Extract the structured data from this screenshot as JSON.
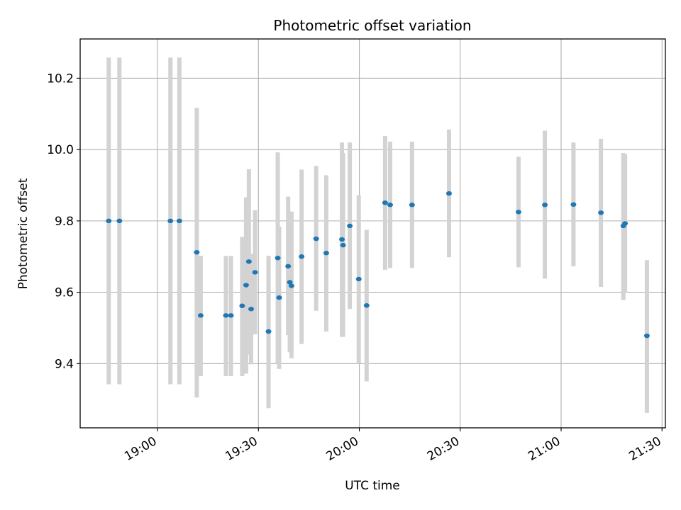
{
  "chart_data": {
    "type": "scatter",
    "title": "Photometric offset variation",
    "xlabel": "UTC time",
    "ylabel": "Photometric offset",
    "x_ticks": [
      "19:00",
      "19:30",
      "20:00",
      "20:30",
      "21:00",
      "21:30"
    ],
    "y_ticks": [
      "9.4",
      "9.6",
      "9.8",
      "10.0",
      "10.2"
    ],
    "xlim": [
      "18:37",
      "21:31"
    ],
    "ylim": [
      9.22,
      10.31
    ],
    "grid": true,
    "colors": {
      "point": "#1f77b4",
      "errorbar": "#d3d3d3"
    },
    "points": [
      {
        "x": "18:45:30",
        "y": 9.8,
        "ylo": 9.342,
        "yhi": 10.258
      },
      {
        "x": "18:48:40",
        "y": 9.8,
        "ylo": 9.342,
        "yhi": 10.258
      },
      {
        "x": "19:03:50",
        "y": 9.8,
        "ylo": 9.342,
        "yhi": 10.258
      },
      {
        "x": "19:06:30",
        "y": 9.8,
        "ylo": 9.342,
        "yhi": 10.258
      },
      {
        "x": "19:11:40",
        "y": 9.712,
        "ylo": 9.305,
        "yhi": 10.117
      },
      {
        "x": "19:12:50",
        "y": 9.535,
        "ylo": 9.365,
        "yhi": 9.702
      },
      {
        "x": "19:20:20",
        "y": 9.535,
        "ylo": 9.365,
        "yhi": 9.702
      },
      {
        "x": "19:21:50",
        "y": 9.535,
        "ylo": 9.365,
        "yhi": 9.702
      },
      {
        "x": "19:25:10",
        "y": 9.562,
        "ylo": 9.365,
        "yhi": 9.755
      },
      {
        "x": "19:26:20",
        "y": 9.62,
        "ylo": 9.372,
        "yhi": 9.866
      },
      {
        "x": "19:27:10",
        "y": 9.686,
        "ylo": 9.425,
        "yhi": 9.945
      },
      {
        "x": "19:27:50",
        "y": 9.553,
        "ylo": 9.398,
        "yhi": 9.708
      },
      {
        "x": "19:29:00",
        "y": 9.656,
        "ylo": 9.482,
        "yhi": 9.83
      },
      {
        "x": "19:33:00",
        "y": 9.49,
        "ylo": 9.275,
        "yhi": 9.702
      },
      {
        "x": "19:35:45",
        "y": 9.696,
        "ylo": 9.4,
        "yhi": 9.992
      },
      {
        "x": "19:36:10",
        "y": 9.585,
        "ylo": 9.385,
        "yhi": 9.784
      },
      {
        "x": "19:38:50",
        "y": 9.673,
        "ylo": 9.48,
        "yhi": 9.868
      },
      {
        "x": "19:39:20",
        "y": 9.628,
        "ylo": 9.432,
        "yhi": 9.826
      },
      {
        "x": "19:39:50",
        "y": 9.618,
        "ylo": 9.415,
        "yhi": 9.826
      },
      {
        "x": "19:42:50",
        "y": 9.7,
        "ylo": 9.455,
        "yhi": 9.944
      },
      {
        "x": "19:47:10",
        "y": 9.75,
        "ylo": 9.548,
        "yhi": 9.954
      },
      {
        "x": "19:50:10",
        "y": 9.71,
        "ylo": 9.49,
        "yhi": 9.928
      },
      {
        "x": "19:54:50",
        "y": 9.748,
        "ylo": 9.475,
        "yhi": 10.02
      },
      {
        "x": "19:55:10",
        "y": 9.732,
        "ylo": 9.475,
        "yhi": 9.99
      },
      {
        "x": "19:57:10",
        "y": 9.786,
        "ylo": 9.553,
        "yhi": 10.02
      },
      {
        "x": "19:59:50",
        "y": 9.637,
        "ylo": 9.4,
        "yhi": 9.872
      },
      {
        "x": "20:02:10",
        "y": 9.563,
        "ylo": 9.35,
        "yhi": 9.775
      },
      {
        "x": "20:07:40",
        "y": 9.851,
        "ylo": 9.663,
        "yhi": 10.038
      },
      {
        "x": "20:09:10",
        "y": 9.845,
        "ylo": 9.668,
        "yhi": 10.022
      },
      {
        "x": "20:15:40",
        "y": 9.845,
        "ylo": 9.668,
        "yhi": 10.022
      },
      {
        "x": "20:26:40",
        "y": 9.877,
        "ylo": 9.698,
        "yhi": 10.056
      },
      {
        "x": "20:47:20",
        "y": 9.825,
        "ylo": 9.67,
        "yhi": 9.98
      },
      {
        "x": "20:55:10",
        "y": 9.845,
        "ylo": 9.638,
        "yhi": 10.053
      },
      {
        "x": "21:03:40",
        "y": 9.846,
        "ylo": 9.673,
        "yhi": 10.02
      },
      {
        "x": "21:11:50",
        "y": 9.823,
        "ylo": 9.615,
        "yhi": 10.03
      },
      {
        "x": "21:18:30",
        "y": 9.786,
        "ylo": 9.578,
        "yhi": 9.99
      },
      {
        "x": "21:19:00",
        "y": 9.793,
        "ylo": 9.6,
        "yhi": 9.987
      },
      {
        "x": "21:25:30",
        "y": 9.478,
        "ylo": 9.262,
        "yhi": 9.69
      }
    ]
  }
}
